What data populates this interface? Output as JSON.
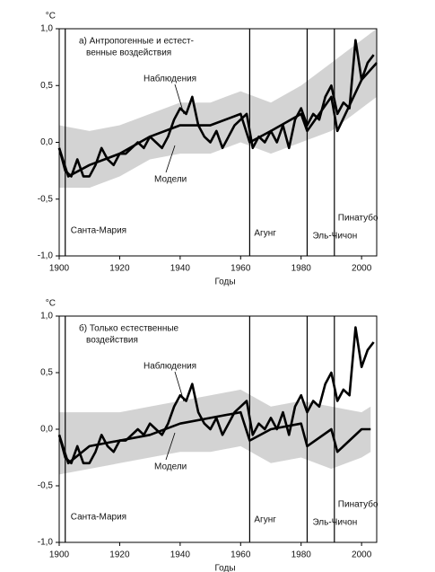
{
  "chart_data": [
    {
      "type": "line",
      "unit": "°С",
      "title_lines": [
        "а) Антропогенные и естест-",
        "венные воздействия"
      ],
      "x_label": "Годы",
      "xlim": [
        1900,
        2005
      ],
      "ylim": [
        -1.0,
        1.0
      ],
      "xticks": [
        1900,
        1920,
        1940,
        1960,
        1980,
        2000
      ],
      "yticks": [
        {
          "value": -1.0,
          "label": "-1,0"
        },
        {
          "value": -0.5,
          "label": "-0,5"
        },
        {
          "value": 0.0,
          "label": "0,0"
        },
        {
          "value": 0.5,
          "label": "0,5"
        },
        {
          "value": 1.0,
          "label": "1,0"
        }
      ],
      "model_range": {
        "color": "#c4c4c4",
        "x": [
          1900,
          1910,
          1920,
          1930,
          1940,
          1950,
          1960,
          1970,
          1980,
          1990,
          2000,
          2005
        ],
        "low": [
          -0.4,
          -0.4,
          -0.3,
          -0.15,
          -0.1,
          -0.1,
          0.0,
          -0.1,
          0.0,
          0.1,
          0.3,
          0.4
        ],
        "high": [
          0.15,
          0.1,
          0.15,
          0.25,
          0.35,
          0.35,
          0.45,
          0.35,
          0.5,
          0.7,
          0.9,
          1.0
        ]
      },
      "series": [
        {
          "name": "Наблюдения",
          "color": "#000000",
          "x": [
            1900,
            1902,
            1904,
            1906,
            1908,
            1910,
            1912,
            1914,
            1916,
            1918,
            1920,
            1922,
            1924,
            1926,
            1928,
            1930,
            1932,
            1934,
            1936,
            1938,
            1940,
            1942,
            1944,
            1946,
            1948,
            1950,
            1952,
            1954,
            1956,
            1958,
            1960,
            1962,
            1964,
            1966,
            1968,
            1970,
            1972,
            1974,
            1976,
            1978,
            1980,
            1982,
            1984,
            1986,
            1988,
            1990,
            1992,
            1994,
            1996,
            1998,
            2000,
            2002,
            2004
          ],
          "values": [
            -0.05,
            -0.25,
            -0.3,
            -0.15,
            -0.3,
            -0.3,
            -0.2,
            -0.05,
            -0.15,
            -0.2,
            -0.1,
            -0.1,
            -0.05,
            0.0,
            -0.05,
            0.05,
            0.0,
            -0.05,
            0.05,
            0.2,
            0.3,
            0.25,
            0.4,
            0.15,
            0.05,
            0.0,
            0.1,
            -0.05,
            0.05,
            0.15,
            0.2,
            0.25,
            -0.05,
            0.05,
            0.0,
            0.1,
            0.0,
            0.15,
            -0.05,
            0.2,
            0.3,
            0.15,
            0.25,
            0.2,
            0.4,
            0.5,
            0.25,
            0.35,
            0.3,
            0.9,
            0.55,
            0.7,
            0.77
          ]
        },
        {
          "name": "Модели",
          "color": "#000000",
          "x": [
            1900,
            1903,
            1910,
            1920,
            1930,
            1940,
            1950,
            1960,
            1963,
            1970,
            1980,
            1982,
            1990,
            1992,
            2000,
            2005
          ],
          "values": [
            -0.05,
            -0.3,
            -0.2,
            -0.1,
            0.05,
            0.15,
            0.15,
            0.25,
            0.0,
            0.1,
            0.25,
            0.1,
            0.4,
            0.1,
            0.55,
            0.7
          ]
        }
      ],
      "events": [
        {
          "year": 1902,
          "label": "Санта-Мария"
        },
        {
          "year": 1963,
          "label": "Агунг"
        },
        {
          "year": 1982,
          "label": "Эль-Чичон"
        },
        {
          "year": 1991,
          "label": "Пинатубо"
        }
      ]
    },
    {
      "type": "line",
      "unit": "°С",
      "title_lines": [
        "б) Только естественные",
        "воздействия"
      ],
      "x_label": "Годы",
      "xlim": [
        1900,
        2005
      ],
      "ylim": [
        -1.0,
        1.0
      ],
      "xticks": [
        1900,
        1920,
        1940,
        1960,
        1980,
        2000
      ],
      "yticks": [
        {
          "value": -1.0,
          "label": "-1,0"
        },
        {
          "value": -0.5,
          "label": "-0,5"
        },
        {
          "value": 0.0,
          "label": "0,0"
        },
        {
          "value": 0.5,
          "label": "0,5"
        },
        {
          "value": 1.0,
          "label": "1,0"
        }
      ],
      "model_range": {
        "color": "#c4c4c4",
        "x": [
          1900,
          1910,
          1920,
          1930,
          1940,
          1950,
          1960,
          1970,
          1980,
          1990,
          2000,
          2003
        ],
        "low": [
          -0.4,
          -0.35,
          -0.3,
          -0.25,
          -0.2,
          -0.2,
          -0.15,
          -0.3,
          -0.25,
          -0.35,
          -0.25,
          -0.2
        ],
        "high": [
          0.15,
          0.15,
          0.15,
          0.2,
          0.25,
          0.3,
          0.35,
          0.2,
          0.25,
          0.2,
          0.15,
          0.2
        ]
      },
      "series": [
        {
          "name": "Наблюдения",
          "color": "#000000",
          "x": [
            1900,
            1902,
            1904,
            1906,
            1908,
            1910,
            1912,
            1914,
            1916,
            1918,
            1920,
            1922,
            1924,
            1926,
            1928,
            1930,
            1932,
            1934,
            1936,
            1938,
            1940,
            1942,
            1944,
            1946,
            1948,
            1950,
            1952,
            1954,
            1956,
            1958,
            1960,
            1962,
            1964,
            1966,
            1968,
            1970,
            1972,
            1974,
            1976,
            1978,
            1980,
            1982,
            1984,
            1986,
            1988,
            1990,
            1992,
            1994,
            1996,
            1998,
            2000,
            2002,
            2004
          ],
          "values": [
            -0.05,
            -0.25,
            -0.3,
            -0.15,
            -0.3,
            -0.3,
            -0.2,
            -0.05,
            -0.15,
            -0.2,
            -0.1,
            -0.1,
            -0.05,
            0.0,
            -0.05,
            0.05,
            0.0,
            -0.05,
            0.05,
            0.2,
            0.3,
            0.25,
            0.4,
            0.15,
            0.05,
            0.0,
            0.1,
            -0.05,
            0.05,
            0.15,
            0.2,
            0.25,
            -0.05,
            0.05,
            0.0,
            0.1,
            0.0,
            0.15,
            -0.05,
            0.2,
            0.3,
            0.15,
            0.25,
            0.2,
            0.4,
            0.5,
            0.25,
            0.35,
            0.3,
            0.9,
            0.55,
            0.7,
            0.77
          ]
        },
        {
          "name": "Модели",
          "color": "#000000",
          "x": [
            1900,
            1903,
            1910,
            1920,
            1930,
            1940,
            1950,
            1960,
            1963,
            1970,
            1980,
            1982,
            1990,
            1992,
            2000,
            2003
          ],
          "values": [
            -0.05,
            -0.3,
            -0.15,
            -0.1,
            -0.05,
            0.05,
            0.1,
            0.15,
            -0.1,
            0.0,
            0.05,
            -0.15,
            0.0,
            -0.2,
            0.0,
            0.0
          ]
        }
      ],
      "events": [
        {
          "year": 1902,
          "label": "Санта-Мария"
        },
        {
          "year": 1963,
          "label": "Агунг"
        },
        {
          "year": 1982,
          "label": "Эль-Чичон"
        },
        {
          "year": 1991,
          "label": "Пинатубо"
        }
      ]
    }
  ]
}
